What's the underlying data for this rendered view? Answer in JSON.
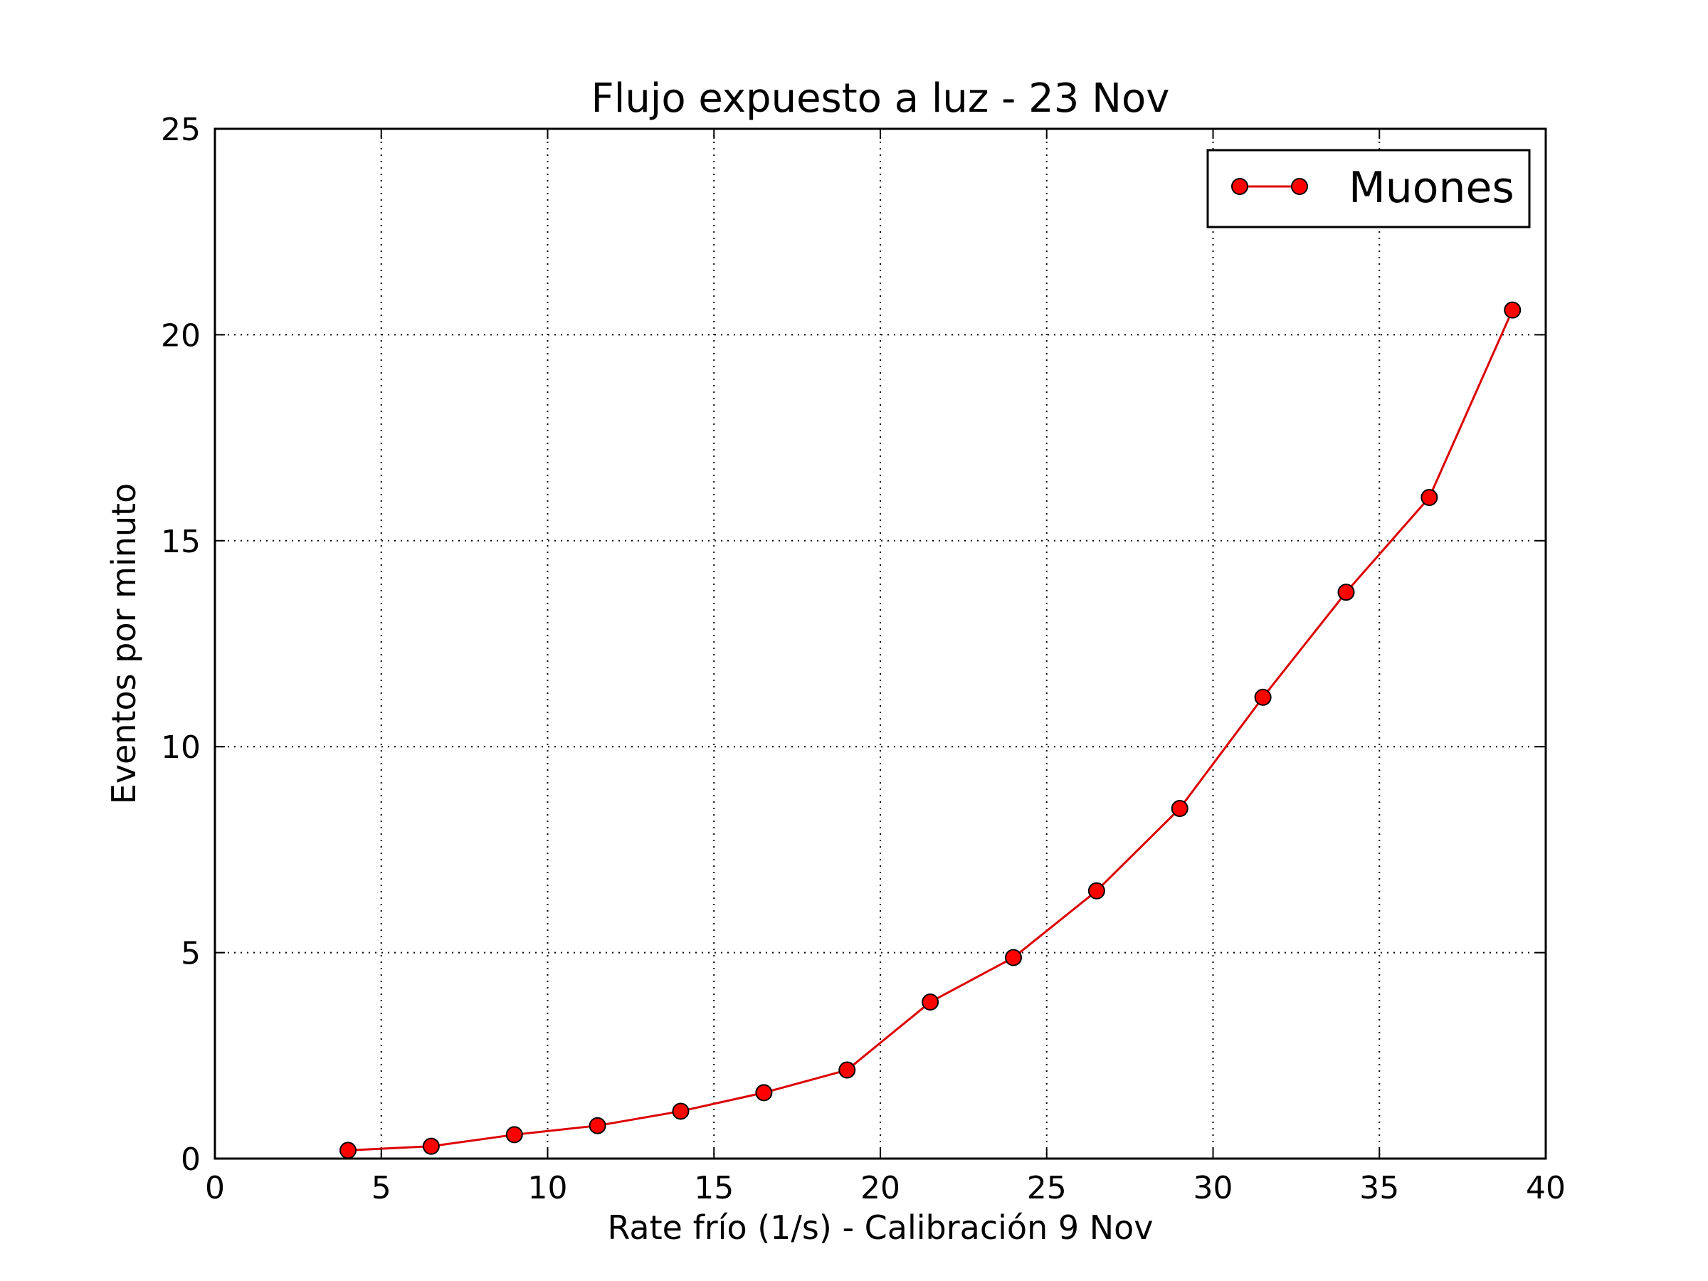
{
  "chart_data": {
    "type": "line",
    "title": "Flujo expuesto a luz - 23 Nov",
    "xlabel": "Rate frío (1/s) - Calibración 9 Nov",
    "ylabel": "Eventos por minuto",
    "xlim": [
      0,
      40
    ],
    "ylim": [
      0,
      25
    ],
    "xticks": [
      0,
      5,
      10,
      15,
      20,
      25,
      30,
      35,
      40
    ],
    "yticks": [
      0,
      5,
      10,
      15,
      20,
      25
    ],
    "grid": true,
    "legend_position": "top-right",
    "series": [
      {
        "name": "Muones",
        "color": "#ff0000",
        "line_color": "#dd0000",
        "x": [
          4,
          6.5,
          9,
          11.5,
          14,
          16.5,
          19,
          21.5,
          24,
          26.5,
          29,
          31.5,
          34,
          36.5,
          39
        ],
        "y": [
          0.2,
          0.3,
          0.58,
          0.8,
          1.15,
          1.6,
          2.15,
          3.8,
          4.88,
          6.5,
          8.5,
          11.2,
          13.75,
          16.05,
          20.6
        ]
      }
    ]
  }
}
